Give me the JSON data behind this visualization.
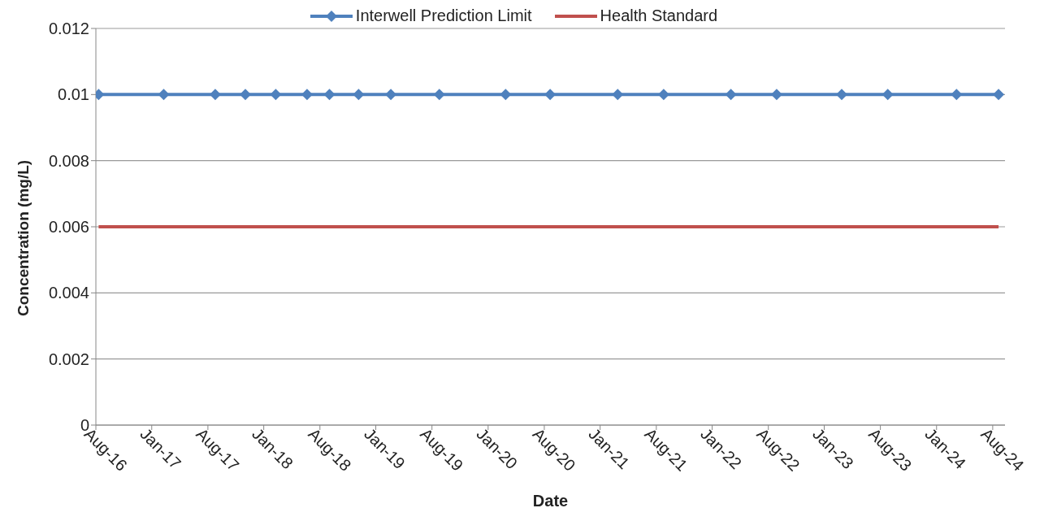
{
  "chart_data": {
    "type": "line",
    "xlabel": "Date",
    "ylabel": "Concentration (mg/L)",
    "legend": "top",
    "grid": "y",
    "xlim": [
      "2016-08-01",
      "2024-09-10"
    ],
    "xticks": [
      {
        "value": "2016-08-01",
        "label": "Aug-16"
      },
      {
        "value": "2017-01-30",
        "label": "Jan-17"
      },
      {
        "value": "2017-08-01",
        "label": "Aug-17"
      },
      {
        "value": "2018-01-30",
        "label": "Jan-18"
      },
      {
        "value": "2018-08-01",
        "label": "Aug-18"
      },
      {
        "value": "2019-01-30",
        "label": "Jan-19"
      },
      {
        "value": "2019-08-01",
        "label": "Aug-19"
      },
      {
        "value": "2020-01-31",
        "label": "Jan-20"
      },
      {
        "value": "2020-08-01",
        "label": "Aug-20"
      },
      {
        "value": "2021-01-30",
        "label": "Jan-21"
      },
      {
        "value": "2021-08-01",
        "label": "Aug-21"
      },
      {
        "value": "2022-01-30",
        "label": "Jan-22"
      },
      {
        "value": "2022-08-01",
        "label": "Aug-22"
      },
      {
        "value": "2023-01-30",
        "label": "Jan-23"
      },
      {
        "value": "2023-08-01",
        "label": "Aug-23"
      },
      {
        "value": "2024-01-31",
        "label": "Jan-24"
      },
      {
        "value": "2024-08-01",
        "label": "Aug-24"
      }
    ],
    "ylim": [
      0,
      0.012
    ],
    "yticks": [
      0,
      0.002,
      0.004,
      0.006,
      0.008,
      0.01,
      0.012
    ],
    "series": [
      {
        "name": "Interwell Prediction Limit",
        "color": "#4f81bd",
        "marker": "diamond",
        "x": [
          "2016-08-10",
          "2017-03-10",
          "2017-08-25",
          "2017-12-01",
          "2018-03-10",
          "2018-06-20",
          "2018-09-01",
          "2018-12-05",
          "2019-03-20",
          "2019-08-25",
          "2020-03-28",
          "2020-08-20",
          "2021-03-28",
          "2021-08-25",
          "2022-04-01",
          "2022-08-28",
          "2023-03-28",
          "2023-08-25",
          "2024-04-05",
          "2024-08-20"
        ],
        "values": [
          0.01,
          0.01,
          0.01,
          0.01,
          0.01,
          0.01,
          0.01,
          0.01,
          0.01,
          0.01,
          0.01,
          0.01,
          0.01,
          0.01,
          0.01,
          0.01,
          0.01,
          0.01,
          0.01,
          0.01
        ]
      },
      {
        "name": "Health Standard",
        "color": "#c0504d",
        "marker": "none",
        "x": [
          "2016-08-10",
          "2024-08-20"
        ],
        "values": [
          0.006,
          0.006
        ]
      }
    ]
  }
}
